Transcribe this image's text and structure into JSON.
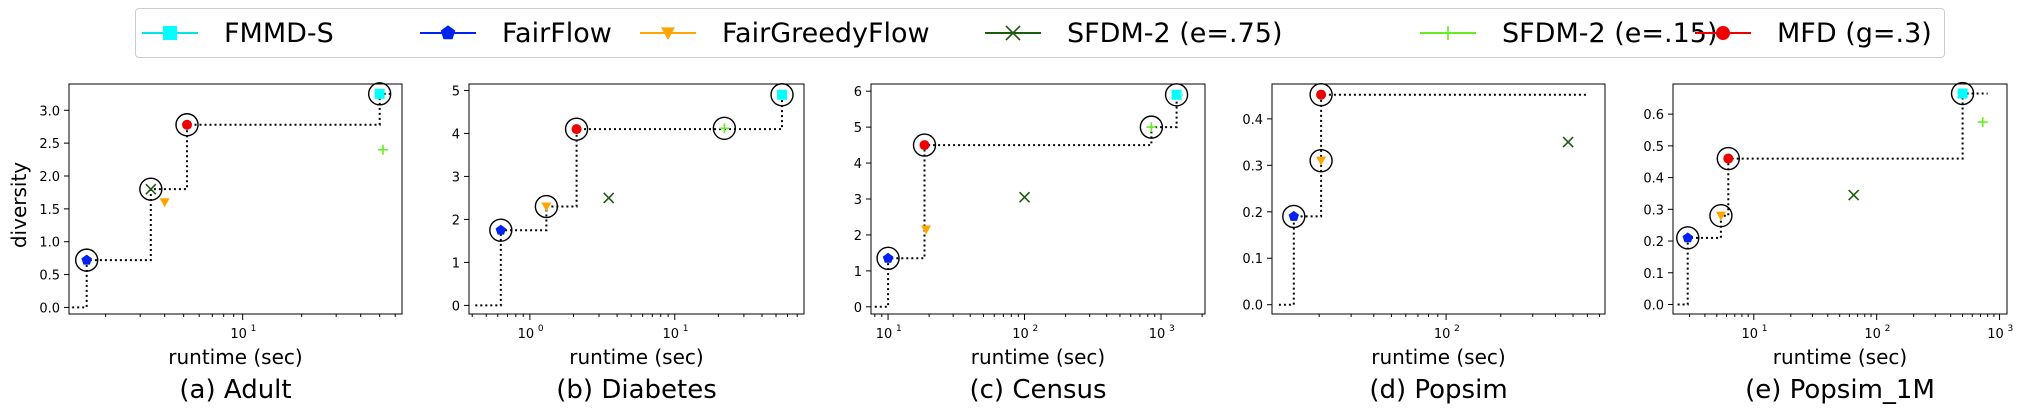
{
  "legend": [
    {
      "name": "FMMD-S",
      "color": "#00ffff",
      "marker": "square",
      "line": "#00e6e6"
    },
    {
      "name": "FairFlow",
      "color": "#0022ee",
      "marker": "pentagon",
      "line": "#0022ee"
    },
    {
      "name": "FairGreedyFlow",
      "color": "#ffa500",
      "marker": "triangle-down",
      "line": "#ffa500"
    },
    {
      "name": "SFDM-2 (e=.75)",
      "color": "#1e5a10",
      "marker": "x",
      "line": "#1e5a10"
    },
    {
      "name": "SFDM-2 (e=.15)",
      "color": "#66ee22",
      "marker": "plus",
      "line": "#66ee22"
    },
    {
      "name": "MFD (g=.3)",
      "color": "#ee0000",
      "marker": "circle",
      "line": "#ee0000"
    }
  ],
  "ylabel": "diversity",
  "chart_data": [
    {
      "type": "scatter",
      "caption": "(a) Adult",
      "xlabel": "runtime (sec)",
      "x_scale": "log",
      "xlim": [
        1.3,
        65
      ],
      "ylim": [
        -0.1,
        3.4
      ],
      "xticks": [
        {
          "v": 10,
          "label": "10",
          "exp": "1"
        }
      ],
      "yticks": [
        "0.0",
        "0.5",
        "1.0",
        "1.5",
        "2.0",
        "2.5",
        "3.0"
      ],
      "ytick_values": [
        0,
        0.5,
        1.0,
        1.5,
        2.0,
        2.5,
        3.0
      ],
      "points": [
        {
          "series": "FairFlow",
          "x": 1.6,
          "y": 0.72
        },
        {
          "series": "SFDM-2 (e=.75)",
          "x": 3.4,
          "y": 1.8
        },
        {
          "series": "FairGreedyFlow",
          "x": 4.0,
          "y": 1.6
        },
        {
          "series": "MFD (g=.3)",
          "x": 5.2,
          "y": 2.78
        },
        {
          "series": "FMMD-S",
          "x": 50,
          "y": 3.25
        },
        {
          "series": "SFDM-2 (e=.15)",
          "x": 52,
          "y": 2.4
        }
      ],
      "circled": [
        [
          1.6,
          0.72
        ],
        [
          3.4,
          1.8
        ],
        [
          5.2,
          2.78
        ],
        [
          50,
          3.25
        ]
      ],
      "frontier": [
        [
          1.35,
          0
        ],
        [
          1.6,
          0
        ],
        [
          1.6,
          0.72
        ],
        [
          3.4,
          0.72
        ],
        [
          3.4,
          1.8
        ],
        [
          5.2,
          1.8
        ],
        [
          5.2,
          2.78
        ],
        [
          50,
          2.78
        ],
        [
          50,
          3.25
        ],
        [
          58,
          3.25
        ]
      ]
    },
    {
      "type": "scatter",
      "caption": "(b) Diabetes",
      "xlabel": "runtime (sec)",
      "x_scale": "log",
      "xlim": [
        0.38,
        78
      ],
      "ylim": [
        -0.2,
        5.15
      ],
      "xticks": [
        {
          "v": 1,
          "label": "10",
          "exp": "0"
        },
        {
          "v": 10,
          "label": "10",
          "exp": "1"
        }
      ],
      "yticks": [
        "0",
        "1",
        "2",
        "3",
        "4",
        "5"
      ],
      "ytick_values": [
        0,
        1,
        2,
        3,
        4,
        5
      ],
      "points": [
        {
          "series": "FairFlow",
          "x": 0.63,
          "y": 1.75
        },
        {
          "series": "FairGreedyFlow",
          "x": 1.3,
          "y": 2.3
        },
        {
          "series": "MFD (g=.3)",
          "x": 2.1,
          "y": 4.1
        },
        {
          "series": "SFDM-2 (e=.75)",
          "x": 3.5,
          "y": 2.5
        },
        {
          "series": "SFDM-2 (e=.15)",
          "x": 22,
          "y": 4.12
        },
        {
          "series": "FMMD-S",
          "x": 55,
          "y": 4.9
        }
      ],
      "circled": [
        [
          0.63,
          1.75
        ],
        [
          1.3,
          2.3
        ],
        [
          2.1,
          4.1
        ],
        [
          22,
          4.12
        ],
        [
          55,
          4.9
        ]
      ],
      "frontier": [
        [
          0.42,
          0
        ],
        [
          0.63,
          0
        ],
        [
          0.63,
          1.75
        ],
        [
          1.3,
          1.75
        ],
        [
          1.3,
          2.3
        ],
        [
          2.1,
          2.3
        ],
        [
          2.1,
          4.1
        ],
        [
          55,
          4.1
        ],
        [
          55,
          4.9
        ],
        [
          62,
          4.9
        ]
      ]
    },
    {
      "type": "scatter",
      "caption": "(c) Census",
      "xlabel": "runtime (sec)",
      "x_scale": "log",
      "xlim": [
        7.5,
        2100
      ],
      "ylim": [
        -0.2,
        6.2
      ],
      "xticks": [
        {
          "v": 10,
          "label": "10",
          "exp": "1"
        },
        {
          "v": 100,
          "label": "10",
          "exp": "2"
        },
        {
          "v": 1000,
          "label": "10",
          "exp": "3"
        }
      ],
      "yticks": [
        "0",
        "1",
        "2",
        "3",
        "4",
        "5",
        "6"
      ],
      "ytick_values": [
        0,
        1,
        2,
        3,
        4,
        5,
        6
      ],
      "points": [
        {
          "series": "FairFlow",
          "x": 10,
          "y": 1.35
        },
        {
          "series": "MFD (g=.3)",
          "x": 18.5,
          "y": 4.5
        },
        {
          "series": "FairGreedyFlow",
          "x": 19,
          "y": 2.15
        },
        {
          "series": "SFDM-2 (e=.75)",
          "x": 100,
          "y": 3.05
        },
        {
          "series": "SFDM-2 (e=.15)",
          "x": 850,
          "y": 5.0
        },
        {
          "series": "FMMD-S",
          "x": 1300,
          "y": 5.9
        }
      ],
      "circled": [
        [
          10,
          1.35
        ],
        [
          18.5,
          4.5
        ],
        [
          850,
          5.0
        ],
        [
          1300,
          5.9
        ]
      ],
      "frontier": [
        [
          8,
          0
        ],
        [
          10,
          0
        ],
        [
          10,
          1.35
        ],
        [
          18.5,
          1.35
        ],
        [
          18.5,
          4.5
        ],
        [
          850,
          4.5
        ],
        [
          850,
          5.0
        ],
        [
          1300,
          5.0
        ],
        [
          1300,
          5.9
        ],
        [
          1450,
          5.9
        ]
      ]
    },
    {
      "type": "scatter",
      "caption": "(d) Popsim",
      "xlabel": "runtime (sec)",
      "x_scale": "log",
      "xlim": [
        11,
        750
      ],
      "ylim": [
        -0.02,
        0.475
      ],
      "xticks": [
        {
          "v": 100,
          "label": "10",
          "exp": "2"
        }
      ],
      "yticks": [
        "0.0",
        "0.1",
        "0.2",
        "0.3",
        "0.4"
      ],
      "ytick_values": [
        0,
        0.1,
        0.2,
        0.3,
        0.4
      ],
      "points": [
        {
          "series": "FairFlow",
          "x": 14.5,
          "y": 0.19
        },
        {
          "series": "FairGreedyFlow",
          "x": 20.5,
          "y": 0.31
        },
        {
          "series": "MFD (g=.3)",
          "x": 20.5,
          "y": 0.452
        },
        {
          "series": "SFDM-2 (e=.75)",
          "x": 470,
          "y": 0.35
        }
      ],
      "circled": [
        [
          14.5,
          0.19
        ],
        [
          20.5,
          0.31
        ],
        [
          20.5,
          0.452
        ]
      ],
      "frontier": [
        [
          12,
          0
        ],
        [
          14.5,
          0
        ],
        [
          14.5,
          0.19
        ],
        [
          20.5,
          0.19
        ],
        [
          20.5,
          0.452
        ],
        [
          600,
          0.452
        ]
      ]
    },
    {
      "type": "scatter",
      "caption": "(e) Popsim_1M",
      "xlabel": "runtime (sec)",
      "x_scale": "log",
      "xlim": [
        2.2,
        1150
      ],
      "ylim": [
        -0.03,
        0.695
      ],
      "xticks": [
        {
          "v": 10,
          "label": "10",
          "exp": "1"
        },
        {
          "v": 100,
          "label": "10",
          "exp": "2"
        },
        {
          "v": 1000,
          "label": "10",
          "exp": "3"
        }
      ],
      "yticks": [
        "0.0",
        "0.1",
        "0.2",
        "0.3",
        "0.4",
        "0.5",
        "0.6"
      ],
      "ytick_values": [
        0,
        0.1,
        0.2,
        0.3,
        0.4,
        0.5,
        0.6
      ],
      "points": [
        {
          "series": "FairFlow",
          "x": 2.9,
          "y": 0.21
        },
        {
          "series": "FairGreedyFlow",
          "x": 5.4,
          "y": 0.28
        },
        {
          "series": "MFD (g=.3)",
          "x": 6.2,
          "y": 0.46
        },
        {
          "series": "SFDM-2 (e=.75)",
          "x": 65,
          "y": 0.345
        },
        {
          "series": "FMMD-S",
          "x": 500,
          "y": 0.665
        },
        {
          "series": "SFDM-2 (e=.15)",
          "x": 730,
          "y": 0.575
        }
      ],
      "circled": [
        [
          2.9,
          0.21
        ],
        [
          5.4,
          0.28
        ],
        [
          6.2,
          0.46
        ],
        [
          500,
          0.665
        ]
      ],
      "frontier": [
        [
          2.4,
          0
        ],
        [
          2.9,
          0
        ],
        [
          2.9,
          0.21
        ],
        [
          5.4,
          0.21
        ],
        [
          5.4,
          0.28
        ],
        [
          6.2,
          0.28
        ],
        [
          6.2,
          0.46
        ],
        [
          500,
          0.46
        ],
        [
          500,
          0.665
        ],
        [
          800,
          0.665
        ]
      ]
    }
  ]
}
